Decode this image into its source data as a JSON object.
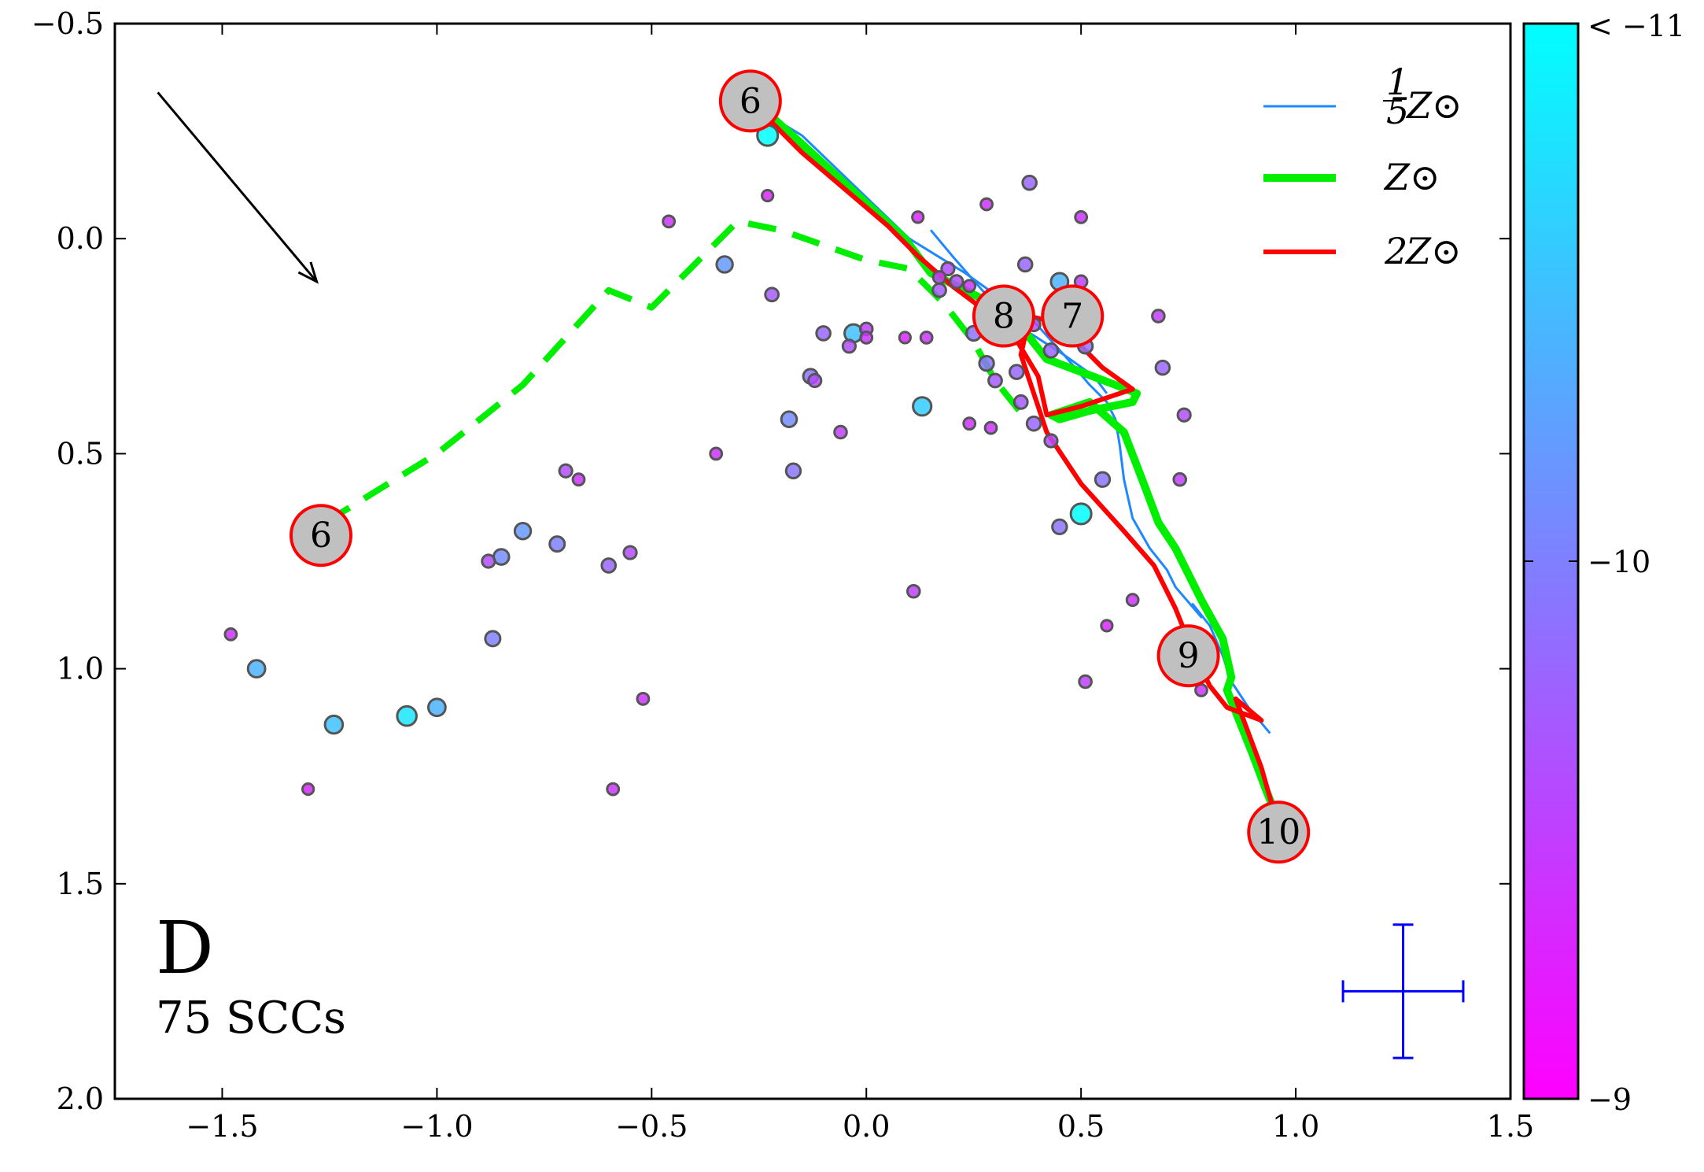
{
  "chart_data": {
    "type": "scatter",
    "panel_label": "D",
    "subtitle": "75 SCCs",
    "xlim": [
      -1.75,
      1.5
    ],
    "ylim": [
      2.0,
      -0.5
    ],
    "y_inverted": true,
    "xticks": [
      -1.5,
      -1.0,
      -0.5,
      0.0,
      0.5,
      1.0,
      1.5
    ],
    "xtick_labels": [
      "−1.5",
      "−1.0",
      "−0.5",
      "0.0",
      "0.5",
      "1.0",
      "1.5"
    ],
    "yticks": [
      -0.5,
      0.0,
      0.5,
      1.0,
      1.5,
      2.0
    ],
    "ytick_labels": [
      "−0.5",
      "0.0",
      "0.5",
      "1.0",
      "1.5",
      "2.0"
    ],
    "colorbar": {
      "range": [
        -9,
        -11
      ],
      "tick_labels": [
        "< −11",
        "−10",
        "−9"
      ],
      "tick_values": [
        -11,
        -10,
        -9
      ],
      "color_low": "#ff00ff",
      "color_high": "#00ffff"
    },
    "legend": {
      "placement": "top-right",
      "entries": [
        {
          "label_frac": "1/5",
          "frac_num": "1",
          "frac_den": "5",
          "label": "Z⊙",
          "color": "#1e88ff"
        },
        {
          "label": "Z⊙",
          "color": "#00ee00"
        },
        {
          "prefix": "2",
          "label": "Z⊙",
          "color": "#ff0000"
        }
      ]
    },
    "points": [
      {
        "x": -0.23,
        "y": -0.24,
        "c": -11.0
      },
      {
        "x": -0.23,
        "y": -0.1,
        "c": -9.3
      },
      {
        "x": -0.46,
        "y": -0.04,
        "c": -9.4
      },
      {
        "x": -0.33,
        "y": 0.06,
        "c": -10.2
      },
      {
        "x": -0.22,
        "y": 0.13,
        "c": -9.7
      },
      {
        "x": -0.1,
        "y": 0.22,
        "c": -9.8
      },
      {
        "x": -0.03,
        "y": 0.22,
        "c": -10.5
      },
      {
        "x": -0.04,
        "y": 0.25,
        "c": -9.6
      },
      {
        "x": 0.0,
        "y": 0.21,
        "c": -9.5
      },
      {
        "x": 0.0,
        "y": 0.23,
        "c": -9.4
      },
      {
        "x": 0.09,
        "y": 0.23,
        "c": -9.3
      },
      {
        "x": 0.14,
        "y": 0.23,
        "c": -9.4
      },
      {
        "x": -0.13,
        "y": 0.32,
        "c": -9.9
      },
      {
        "x": -0.12,
        "y": 0.33,
        "c": -9.6
      },
      {
        "x": -0.18,
        "y": 0.42,
        "c": -10.1
      },
      {
        "x": 0.13,
        "y": 0.39,
        "c": -10.6
      },
      {
        "x": -0.06,
        "y": 0.45,
        "c": -9.5
      },
      {
        "x": -0.35,
        "y": 0.5,
        "c": -9.4
      },
      {
        "x": -0.17,
        "y": 0.54,
        "c": -9.9
      },
      {
        "x": -0.7,
        "y": 0.54,
        "c": -9.6
      },
      {
        "x": -0.67,
        "y": 0.56,
        "c": -9.4
      },
      {
        "x": 0.12,
        "y": -0.05,
        "c": -9.3
      },
      {
        "x": 0.28,
        "y": -0.08,
        "c": -9.4
      },
      {
        "x": 0.38,
        "y": -0.13,
        "c": -9.8
      },
      {
        "x": 0.5,
        "y": -0.05,
        "c": -9.4
      },
      {
        "x": 0.37,
        "y": 0.06,
        "c": -9.8
      },
      {
        "x": 0.45,
        "y": 0.1,
        "c": -10.4
      },
      {
        "x": 0.5,
        "y": 0.1,
        "c": -9.5
      },
      {
        "x": 0.19,
        "y": 0.07,
        "c": -9.6
      },
      {
        "x": 0.17,
        "y": 0.09,
        "c": -9.5
      },
      {
        "x": 0.21,
        "y": 0.1,
        "c": -9.6
      },
      {
        "x": 0.24,
        "y": 0.11,
        "c": -9.4
      },
      {
        "x": 0.17,
        "y": 0.12,
        "c": -9.7
      },
      {
        "x": 0.3,
        "y": 0.15,
        "c": -10.0
      },
      {
        "x": 0.35,
        "y": 0.19,
        "c": -9.8
      },
      {
        "x": 0.39,
        "y": 0.2,
        "c": -9.6
      },
      {
        "x": 0.25,
        "y": 0.22,
        "c": -9.9
      },
      {
        "x": 0.32,
        "y": 0.23,
        "c": -9.7
      },
      {
        "x": 0.43,
        "y": 0.26,
        "c": -9.8
      },
      {
        "x": 0.51,
        "y": 0.25,
        "c": -9.9
      },
      {
        "x": 0.28,
        "y": 0.29,
        "c": -9.9
      },
      {
        "x": 0.35,
        "y": 0.31,
        "c": -9.8
      },
      {
        "x": 0.3,
        "y": 0.33,
        "c": -9.7
      },
      {
        "x": 0.36,
        "y": 0.38,
        "c": -9.7
      },
      {
        "x": 0.39,
        "y": 0.43,
        "c": -9.8
      },
      {
        "x": 0.24,
        "y": 0.43,
        "c": -9.4
      },
      {
        "x": 0.29,
        "y": 0.44,
        "c": -9.4
      },
      {
        "x": 0.43,
        "y": 0.47,
        "c": -9.6
      },
      {
        "x": 0.68,
        "y": 0.18,
        "c": -9.5
      },
      {
        "x": 0.69,
        "y": 0.3,
        "c": -9.8
      },
      {
        "x": 0.74,
        "y": 0.41,
        "c": -9.6
      },
      {
        "x": 0.73,
        "y": 0.56,
        "c": -9.5
      },
      {
        "x": 0.55,
        "y": 0.56,
        "c": -9.9
      },
      {
        "x": 0.5,
        "y": 0.64,
        "c": -11.0
      },
      {
        "x": 0.45,
        "y": 0.67,
        "c": -9.9
      },
      {
        "x": 0.62,
        "y": 0.84,
        "c": -9.4
      },
      {
        "x": 0.56,
        "y": 0.9,
        "c": -9.3
      },
      {
        "x": 0.11,
        "y": 0.82,
        "c": -9.5
      },
      {
        "x": 0.51,
        "y": 1.03,
        "c": -9.5
      },
      {
        "x": 0.78,
        "y": 1.05,
        "c": -9.4
      },
      {
        "x": -0.8,
        "y": 0.68,
        "c": -10.2
      },
      {
        "x": -0.72,
        "y": 0.71,
        "c": -10.0
      },
      {
        "x": -0.85,
        "y": 0.74,
        "c": -10.1
      },
      {
        "x": -0.88,
        "y": 0.75,
        "c": -9.6
      },
      {
        "x": -0.6,
        "y": 0.76,
        "c": -9.8
      },
      {
        "x": -0.55,
        "y": 0.73,
        "c": -9.6
      },
      {
        "x": -1.48,
        "y": 0.92,
        "c": -9.4
      },
      {
        "x": -1.42,
        "y": 1.0,
        "c": -10.4
      },
      {
        "x": -0.87,
        "y": 0.93,
        "c": -10.0
      },
      {
        "x": -1.24,
        "y": 1.13,
        "c": -10.5
      },
      {
        "x": -1.07,
        "y": 1.11,
        "c": -10.8
      },
      {
        "x": -1.0,
        "y": 1.09,
        "c": -10.4
      },
      {
        "x": -0.52,
        "y": 1.07,
        "c": -9.4
      },
      {
        "x": -1.3,
        "y": 1.28,
        "c": -9.3
      },
      {
        "x": -0.59,
        "y": 1.28,
        "c": -9.4
      }
    ],
    "series": [
      {
        "name": "1/5 Z⊙",
        "color": "#1e88ff",
        "width": 3,
        "dash": "none",
        "x": [
          -0.25,
          -0.15,
          0.1,
          0.23,
          0.3,
          0.37,
          0.46,
          0.52,
          0.56,
          0.58,
          0.59,
          0.6,
          0.62,
          0.66,
          0.7,
          0.72,
          0.78,
          0.76,
          0.8,
          0.83,
          0.85,
          0.89,
          0.94
        ],
        "y": [
          -0.3,
          -0.24,
          0.0,
          0.08,
          0.13,
          0.17,
          0.27,
          0.34,
          0.38,
          0.42,
          0.48,
          0.56,
          0.65,
          0.72,
          0.77,
          0.81,
          0.88,
          0.85,
          0.9,
          0.97,
          1.03,
          1.09,
          1.15
        ]
      },
      {
        "name": "1/5 Z⊙ (secondary)",
        "color": "#1e88ff",
        "width": 3,
        "dash": "none",
        "x": [
          0.15,
          0.2,
          0.27,
          0.35,
          0.46,
          0.53,
          0.56
        ],
        "y": [
          -0.02,
          0.04,
          0.12,
          0.2,
          0.27,
          0.32,
          0.36
        ]
      },
      {
        "name": "Z⊙",
        "color": "#00ee00",
        "width": 10,
        "dash": "none",
        "x": [
          -0.25,
          -0.15,
          0.09,
          0.15,
          0.25,
          0.33,
          0.38,
          0.42,
          0.5,
          0.58,
          0.63,
          0.62,
          0.52,
          0.45,
          0.43,
          0.52,
          0.6,
          0.65,
          0.68,
          0.72,
          0.78,
          0.83,
          0.85,
          0.84,
          0.86,
          0.9,
          0.93,
          0.97
        ],
        "y": [
          -0.31,
          -0.22,
          0.0,
          0.08,
          0.13,
          0.17,
          0.23,
          0.28,
          0.31,
          0.34,
          0.36,
          0.38,
          0.4,
          0.42,
          0.41,
          0.38,
          0.45,
          0.58,
          0.66,
          0.72,
          0.84,
          0.93,
          1.02,
          1.05,
          1.1,
          1.2,
          1.28,
          1.38
        ]
      },
      {
        "name": "Z⊙ (dashed)",
        "color": "#00ee00",
        "width": 8,
        "dash": "36,22",
        "x": [
          -1.26,
          -1.0,
          -0.8,
          -0.6,
          -0.5,
          -0.3,
          -0.2,
          0.0,
          0.1,
          0.18,
          0.25,
          0.3,
          0.38
        ],
        "y": [
          0.66,
          0.5,
          0.34,
          0.12,
          0.16,
          -0.04,
          -0.02,
          0.05,
          0.07,
          0.15,
          0.24,
          0.33,
          0.43
        ]
      },
      {
        "name": "2Z⊙",
        "color": "#ff0000",
        "width": 6,
        "dash": "none",
        "x": [
          -0.25,
          -0.15,
          0.05,
          0.12,
          0.2,
          0.28,
          0.34,
          0.37,
          0.4,
          0.42,
          0.5,
          0.62,
          0.55,
          0.5,
          0.46,
          0.38,
          0.36,
          0.42,
          0.5,
          0.6,
          0.67,
          0.72,
          0.76,
          0.8,
          0.84,
          0.92,
          0.86,
          0.92,
          0.96
        ],
        "y": [
          -0.3,
          -0.2,
          -0.03,
          0.04,
          0.11,
          0.17,
          0.22,
          0.27,
          0.32,
          0.41,
          0.39,
          0.35,
          0.3,
          0.25,
          0.2,
          0.18,
          0.27,
          0.45,
          0.57,
          0.68,
          0.76,
          0.86,
          0.96,
          1.04,
          1.09,
          1.12,
          1.07,
          1.23,
          1.37
        ]
      }
    ],
    "age_markers": [
      {
        "x": -0.27,
        "y": -0.32,
        "label": "6"
      },
      {
        "x": -1.27,
        "y": 0.69,
        "label": "6"
      },
      {
        "x": 0.32,
        "y": 0.18,
        "label": "8"
      },
      {
        "x": 0.48,
        "y": 0.18,
        "label": "7"
      },
      {
        "x": 0.75,
        "y": 0.97,
        "label": "9"
      },
      {
        "x": 0.96,
        "y": 1.38,
        "label": "10"
      }
    ],
    "reddening_arrow": {
      "x0": -1.65,
      "y0": -0.34,
      "x1": -1.28,
      "y1": 0.1,
      "color": "#000000"
    },
    "error_bar": {
      "x": 1.25,
      "y": 1.75,
      "xerr": 0.14,
      "yerr": 0.155,
      "color": "#0000ff"
    }
  }
}
